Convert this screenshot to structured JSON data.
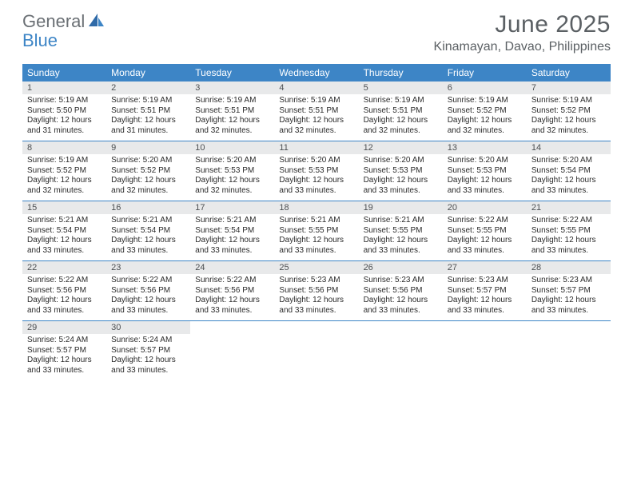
{
  "brand": {
    "part1": "General",
    "part2": "Blue"
  },
  "title": "June 2025",
  "location": "Kinamayan, Davao, Philippines",
  "colors": {
    "header_bar": "#3d85c6",
    "daynum_bg": "#e8e9ea",
    "text_muted": "#5b6064",
    "logo_gray": "#6a6f74",
    "logo_blue": "#3d85c6",
    "row_divider": "#3d85c6"
  },
  "days_of_week": [
    "Sunday",
    "Monday",
    "Tuesday",
    "Wednesday",
    "Thursday",
    "Friday",
    "Saturday"
  ],
  "weeks": [
    [
      {
        "n": "1",
        "sr": "5:19 AM",
        "ss": "5:50 PM",
        "dl": "12 hours and 31 minutes."
      },
      {
        "n": "2",
        "sr": "5:19 AM",
        "ss": "5:51 PM",
        "dl": "12 hours and 31 minutes."
      },
      {
        "n": "3",
        "sr": "5:19 AM",
        "ss": "5:51 PM",
        "dl": "12 hours and 32 minutes."
      },
      {
        "n": "4",
        "sr": "5:19 AM",
        "ss": "5:51 PM",
        "dl": "12 hours and 32 minutes."
      },
      {
        "n": "5",
        "sr": "5:19 AM",
        "ss": "5:51 PM",
        "dl": "12 hours and 32 minutes."
      },
      {
        "n": "6",
        "sr": "5:19 AM",
        "ss": "5:52 PM",
        "dl": "12 hours and 32 minutes."
      },
      {
        "n": "7",
        "sr": "5:19 AM",
        "ss": "5:52 PM",
        "dl": "12 hours and 32 minutes."
      }
    ],
    [
      {
        "n": "8",
        "sr": "5:19 AM",
        "ss": "5:52 PM",
        "dl": "12 hours and 32 minutes."
      },
      {
        "n": "9",
        "sr": "5:20 AM",
        "ss": "5:52 PM",
        "dl": "12 hours and 32 minutes."
      },
      {
        "n": "10",
        "sr": "5:20 AM",
        "ss": "5:53 PM",
        "dl": "12 hours and 32 minutes."
      },
      {
        "n": "11",
        "sr": "5:20 AM",
        "ss": "5:53 PM",
        "dl": "12 hours and 33 minutes."
      },
      {
        "n": "12",
        "sr": "5:20 AM",
        "ss": "5:53 PM",
        "dl": "12 hours and 33 minutes."
      },
      {
        "n": "13",
        "sr": "5:20 AM",
        "ss": "5:53 PM",
        "dl": "12 hours and 33 minutes."
      },
      {
        "n": "14",
        "sr": "5:20 AM",
        "ss": "5:54 PM",
        "dl": "12 hours and 33 minutes."
      }
    ],
    [
      {
        "n": "15",
        "sr": "5:21 AM",
        "ss": "5:54 PM",
        "dl": "12 hours and 33 minutes."
      },
      {
        "n": "16",
        "sr": "5:21 AM",
        "ss": "5:54 PM",
        "dl": "12 hours and 33 minutes."
      },
      {
        "n": "17",
        "sr": "5:21 AM",
        "ss": "5:54 PM",
        "dl": "12 hours and 33 minutes."
      },
      {
        "n": "18",
        "sr": "5:21 AM",
        "ss": "5:55 PM",
        "dl": "12 hours and 33 minutes."
      },
      {
        "n": "19",
        "sr": "5:21 AM",
        "ss": "5:55 PM",
        "dl": "12 hours and 33 minutes."
      },
      {
        "n": "20",
        "sr": "5:22 AM",
        "ss": "5:55 PM",
        "dl": "12 hours and 33 minutes."
      },
      {
        "n": "21",
        "sr": "5:22 AM",
        "ss": "5:55 PM",
        "dl": "12 hours and 33 minutes."
      }
    ],
    [
      {
        "n": "22",
        "sr": "5:22 AM",
        "ss": "5:56 PM",
        "dl": "12 hours and 33 minutes."
      },
      {
        "n": "23",
        "sr": "5:22 AM",
        "ss": "5:56 PM",
        "dl": "12 hours and 33 minutes."
      },
      {
        "n": "24",
        "sr": "5:22 AM",
        "ss": "5:56 PM",
        "dl": "12 hours and 33 minutes."
      },
      {
        "n": "25",
        "sr": "5:23 AM",
        "ss": "5:56 PM",
        "dl": "12 hours and 33 minutes."
      },
      {
        "n": "26",
        "sr": "5:23 AM",
        "ss": "5:56 PM",
        "dl": "12 hours and 33 minutes."
      },
      {
        "n": "27",
        "sr": "5:23 AM",
        "ss": "5:57 PM",
        "dl": "12 hours and 33 minutes."
      },
      {
        "n": "28",
        "sr": "5:23 AM",
        "ss": "5:57 PM",
        "dl": "12 hours and 33 minutes."
      }
    ],
    [
      {
        "n": "29",
        "sr": "5:24 AM",
        "ss": "5:57 PM",
        "dl": "12 hours and 33 minutes."
      },
      {
        "n": "30",
        "sr": "5:24 AM",
        "ss": "5:57 PM",
        "dl": "12 hours and 33 minutes."
      },
      null,
      null,
      null,
      null,
      null
    ]
  ],
  "labels": {
    "sunrise": "Sunrise:",
    "sunset": "Sunset:",
    "daylight": "Daylight:"
  }
}
